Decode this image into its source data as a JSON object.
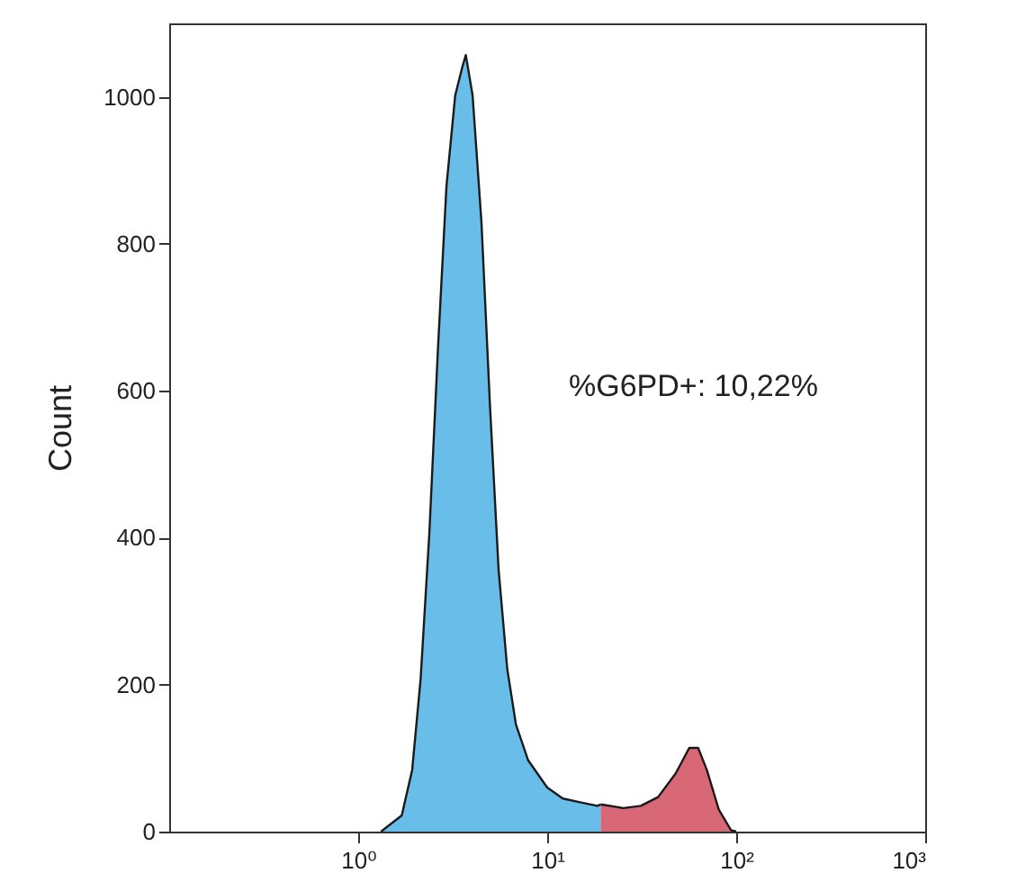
{
  "chart_data": {
    "type": "area",
    "ylabel": "Count",
    "log": "x",
    "xlim": [
      0.1,
      1000
    ],
    "ylim": [
      0,
      1100
    ],
    "xticks": [
      {
        "value": 1,
        "label": "10⁰"
      },
      {
        "value": 10,
        "label": "10¹"
      },
      {
        "value": 100,
        "label": "10²"
      },
      {
        "value": 1000,
        "label": "10³"
      }
    ],
    "yticks": [
      0,
      200,
      400,
      600,
      800,
      1000
    ],
    "series": [
      {
        "color": "#29a3df",
        "x": [
          1.32,
          1.7,
          1.93,
          2.14,
          2.38,
          2.64,
          2.93,
          3.26,
          3.55,
          3.71,
          4.03,
          4.49,
          4.98,
          5.53,
          6.15,
          6.83,
          7.93,
          10,
          12.1,
          14.9,
          18.4,
          19.2
        ],
        "values": [
          0,
          22,
          84,
          208,
          407,
          655,
          878,
          1002,
          1040,
          1057,
          1002,
          829,
          580,
          357,
          221,
          146,
          97,
          60,
          45,
          40,
          35,
          37
        ]
      },
      {
        "color": "#c8283c",
        "x": [
          19.2,
          25.3,
          31.3,
          38.6,
          47.8,
          56.5,
          62.9,
          69.9,
          80.9,
          93.8,
          100
        ],
        "values": [
          37,
          32,
          35,
          47,
          79,
          114,
          114,
          84,
          30,
          2,
          0
        ]
      }
    ],
    "annotations": [
      "%G6PD+: 10,22%"
    ]
  }
}
